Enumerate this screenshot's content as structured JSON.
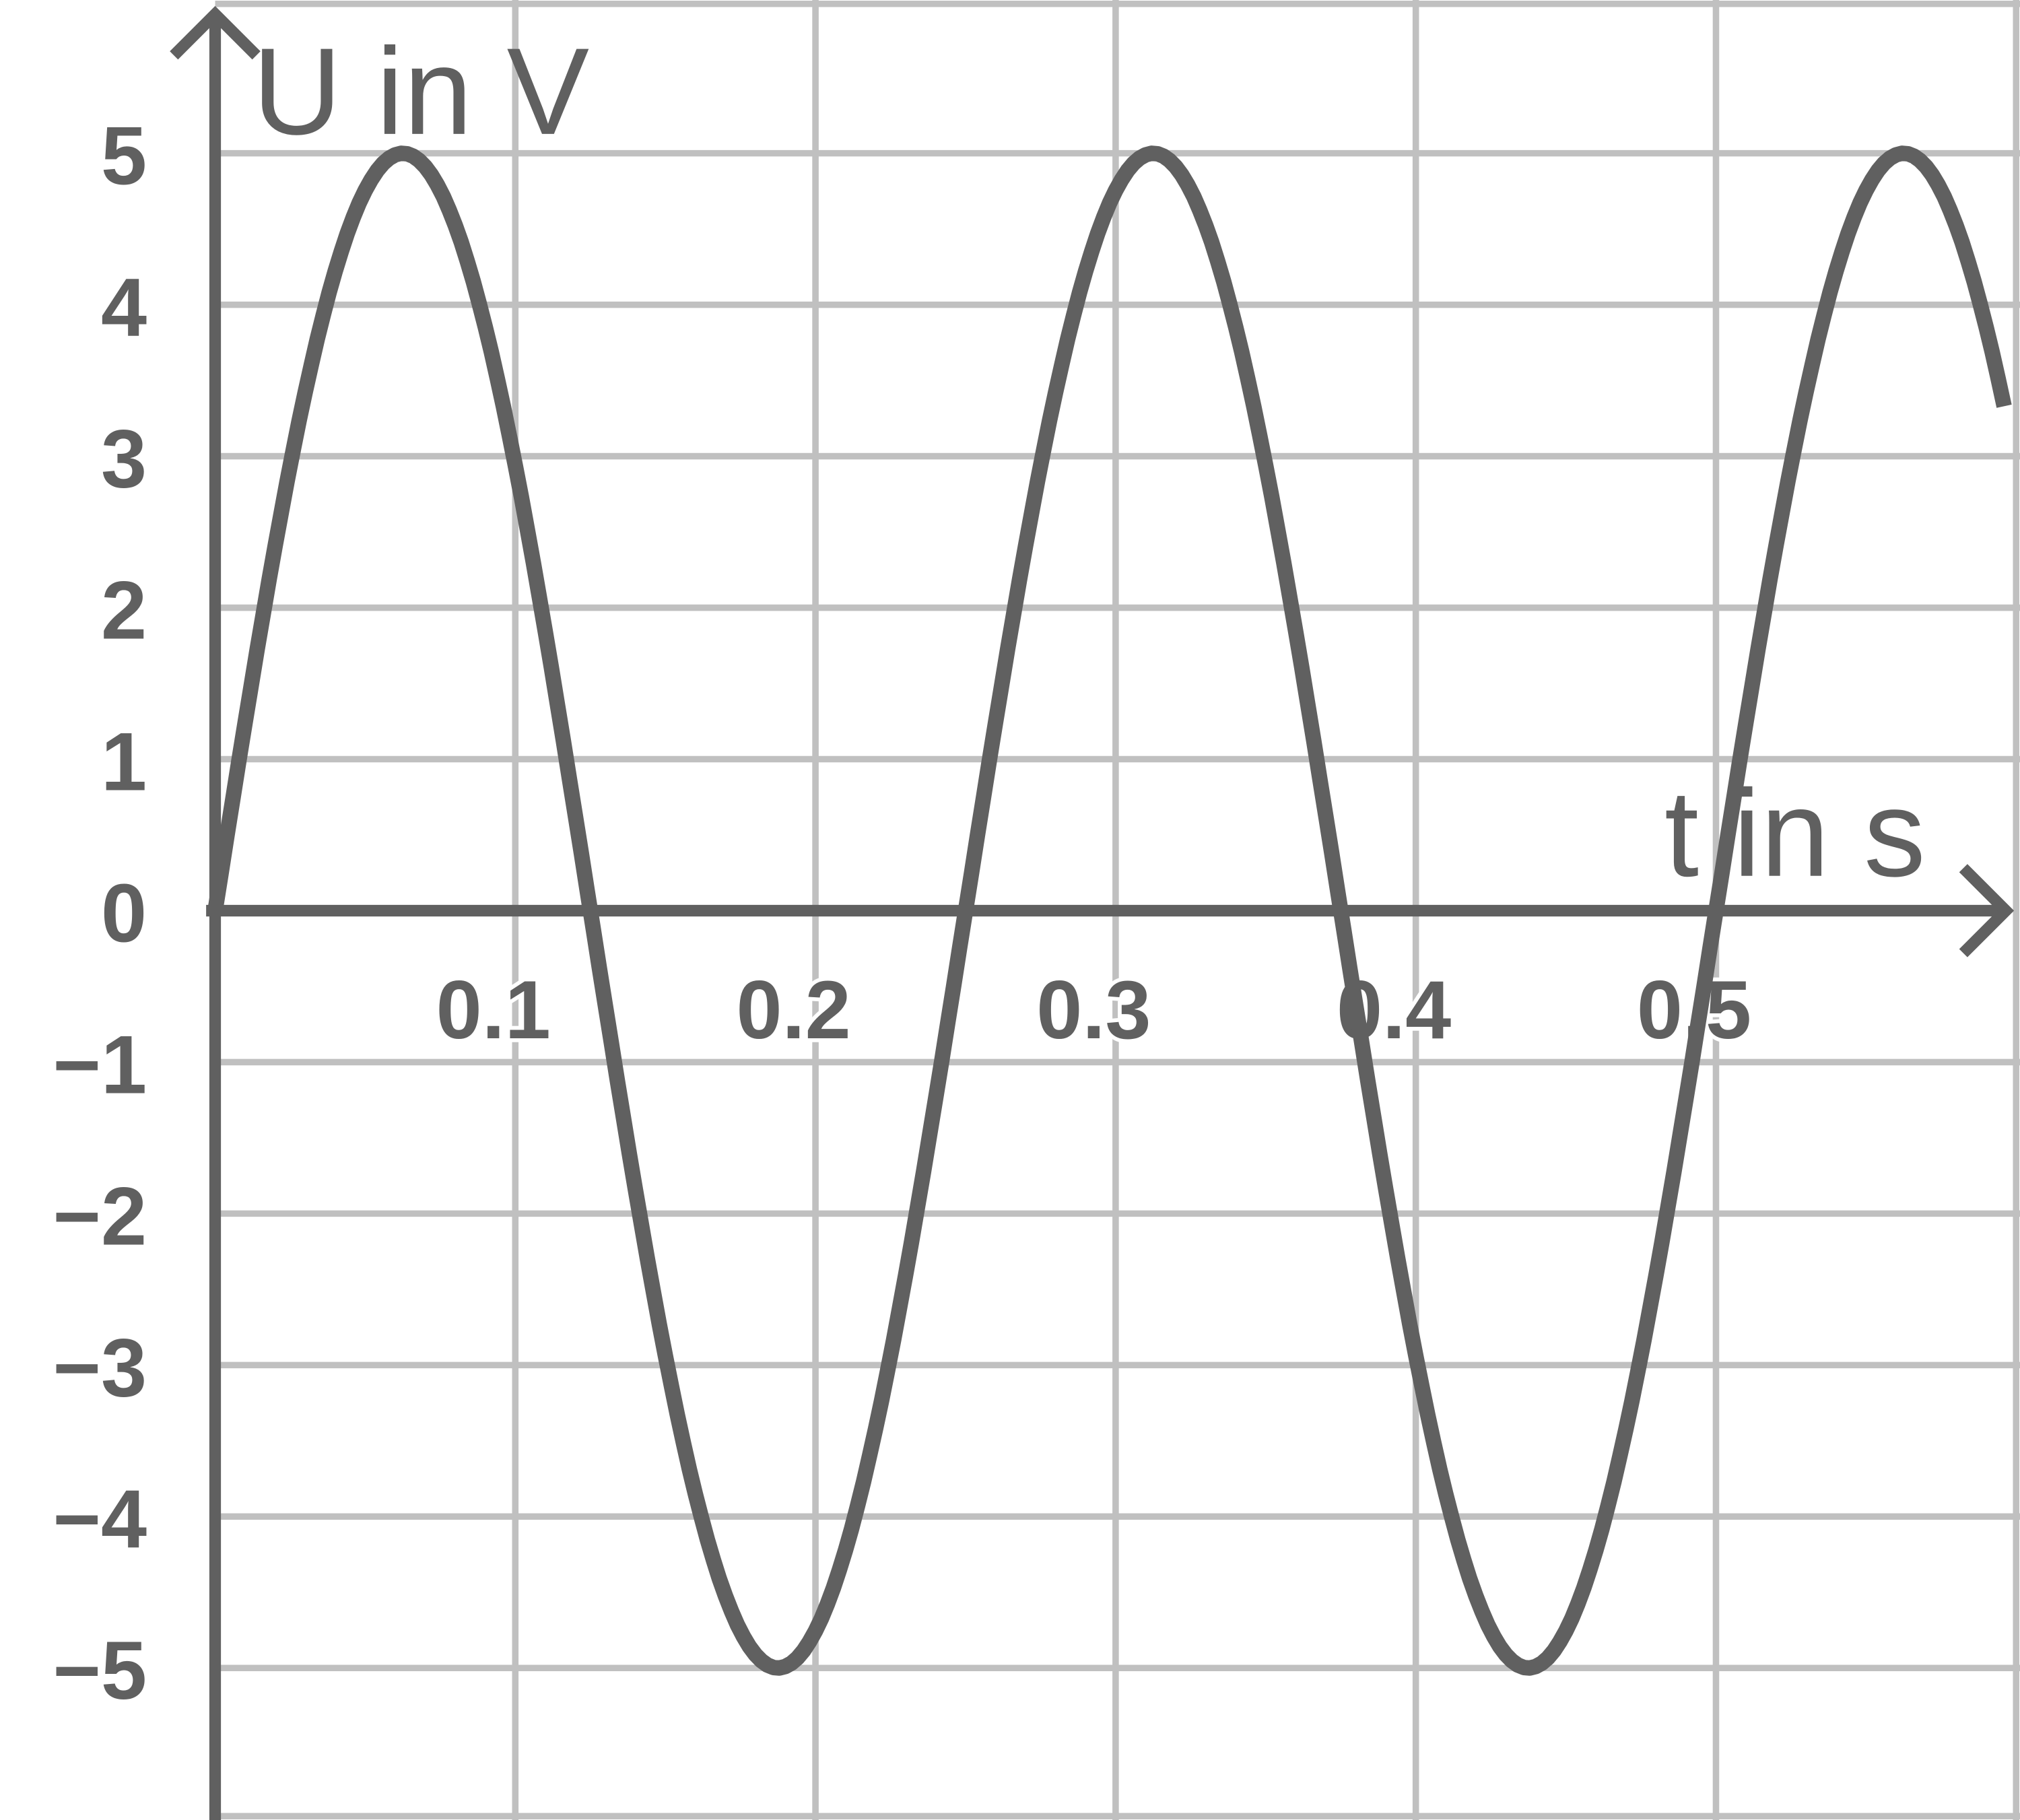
{
  "chart_data": {
    "type": "line",
    "xlabel": "t in s",
    "ylabel": "U in V",
    "xlim": [
      0,
      0.6
    ],
    "ylim": [
      -6,
      6
    ],
    "grid": true,
    "x_ticks": [
      "0.1",
      "0.2",
      "0.3",
      "0.4",
      "0.5"
    ],
    "y_ticks": [
      "5",
      "4",
      "3",
      "2",
      "1",
      "0",
      "−1",
      "−2",
      "−3",
      "−4",
      "−5"
    ],
    "series": [
      {
        "function": "U = 5 sin(2π · 4 · t)",
        "amplitude": 5,
        "frequency_hz": 4,
        "period_s": 0.25,
        "t_range": [
          0,
          0.6
        ]
      }
    ],
    "colors": {
      "curve": "#606060",
      "axes": "#606060",
      "grid": "#c0c0c0"
    }
  }
}
